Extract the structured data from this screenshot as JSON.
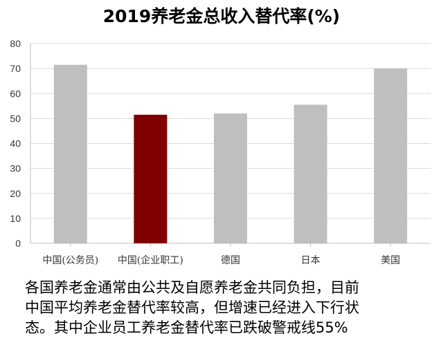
{
  "chart_data": {
    "type": "bar",
    "title": "2019养老金总收入替代率(%)",
    "categories": [
      "中国(公务员)",
      "中国(企业职工)",
      "德国",
      "日本",
      "美国"
    ],
    "values": [
      71.5,
      51.5,
      52,
      55.5,
      70
    ],
    "highlight_index": 1,
    "colors": {
      "default": "#bfbfbf",
      "highlight": "#7f0000",
      "grid": "#d9d9d9",
      "axis": "#bfbfbf"
    },
    "ylim": [
      0,
      80
    ],
    "yticks": [
      0,
      10,
      20,
      30,
      40,
      50,
      60,
      70,
      80
    ],
    "grid": true,
    "xlabel": "",
    "ylabel": ""
  },
  "caption": {
    "lines": [
      "各国养老金通常由公共及自愿养老金共同负担，目前",
      "中国平均养老金替代率较高，但增速已经进入下行状",
      "态。其中企业员工养老金替代率已跌破警戒线55%"
    ]
  }
}
